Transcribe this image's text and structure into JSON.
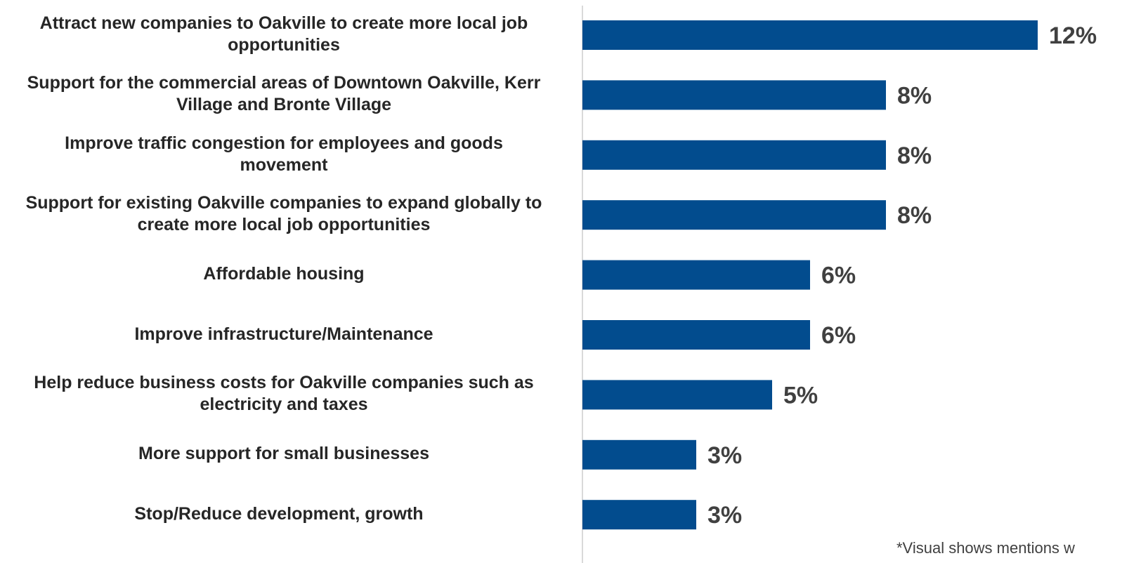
{
  "chart_data": {
    "type": "bar",
    "orientation": "horizontal",
    "categories": [
      "Attract new companies to Oakville to create more local job opportunities",
      "Support for the commercial areas of Downtown Oakville, Kerr Village and Bronte Village",
      "Improve traffic congestion for employees and goods movement",
      "Support for existing Oakville companies to expand globally to create more local job opportunities",
      "Affordable housing",
      "Improve infrastructure/Maintenance",
      "Help reduce business costs for Oakville companies such as electricity and taxes",
      "More support for small businesses",
      "Stop/Reduce development, growth"
    ],
    "values": [
      12,
      8,
      8,
      8,
      6,
      6,
      5,
      3,
      3
    ],
    "value_labels": [
      "12%",
      "8%",
      "8%",
      "8%",
      "6%",
      "6%",
      "5%",
      "3%",
      "3%"
    ],
    "value_unit": "%",
    "bar_color": "#024C8E",
    "axis_line_color": "#D9D9D9",
    "grid": false,
    "legend": false
  },
  "footnote": "*Visual shows mentions w"
}
